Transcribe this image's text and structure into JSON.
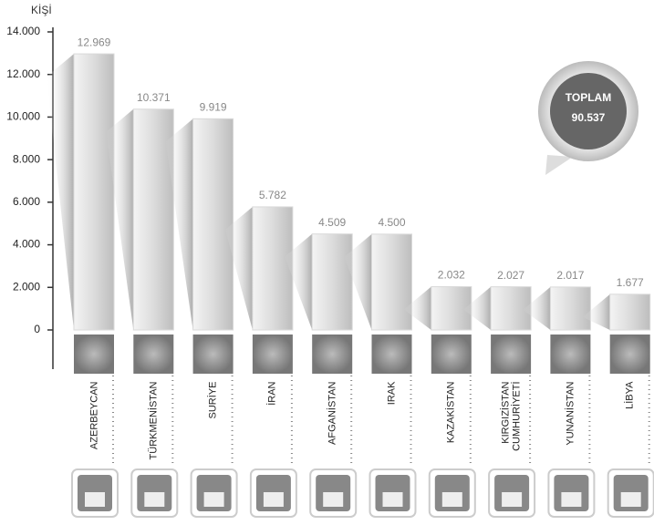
{
  "chart_data": {
    "type": "bar",
    "ylabel": "KİŞİ",
    "categories": [
      "AZERBEYCAN",
      "TÜRKMENİSTAN",
      "SURİYE",
      "İRAN",
      "AFGANİSTAN",
      "IRAK",
      "KAZAKİSTAN",
      "KIRGIZİSTAN CUMHURİYETİ",
      "YUNANİSTAN",
      "LİBYA"
    ],
    "values": [
      12969,
      10371,
      9919,
      5782,
      4509,
      4500,
      2032,
      2027,
      2017,
      1677
    ],
    "value_labels": [
      "12.969",
      "10.371",
      "9.919",
      "5.782",
      "4.509",
      "4.500",
      "2.032",
      "2.027",
      "2.017",
      "1.677"
    ],
    "color": "#d9d9d9",
    "ylim": [
      0,
      14000
    ],
    "yticks": [
      0,
      {
        "value": 2000,
        "label": "2.000"
      },
      {
        "value": 4000,
        "label": "4.000"
      },
      {
        "value": 6000,
        "label": "6.000"
      },
      {
        "value": 8000,
        "label": "8.000"
      },
      {
        "value": 10000,
        "label": "10.000"
      },
      {
        "value": 12000,
        "label": "12.000"
      },
      {
        "value": 14000,
        "label": "14.000"
      }
    ],
    "annotations": [
      "TOPLAM",
      "90.537"
    ]
  }
}
